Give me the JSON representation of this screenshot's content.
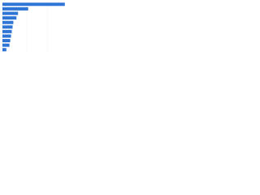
{
  "chart_data": {
    "type": "bar",
    "orientation": "horizontal",
    "categories": [
      null,
      null,
      null,
      null,
      null,
      null,
      null,
      null,
      null,
      null,
      null
    ],
    "values": [
      80,
      33,
      20,
      18,
      14,
      13,
      12,
      11,
      10,
      9,
      5
    ],
    "color": "#2f75d6",
    "xlim": [
      0,
      100
    ]
  }
}
